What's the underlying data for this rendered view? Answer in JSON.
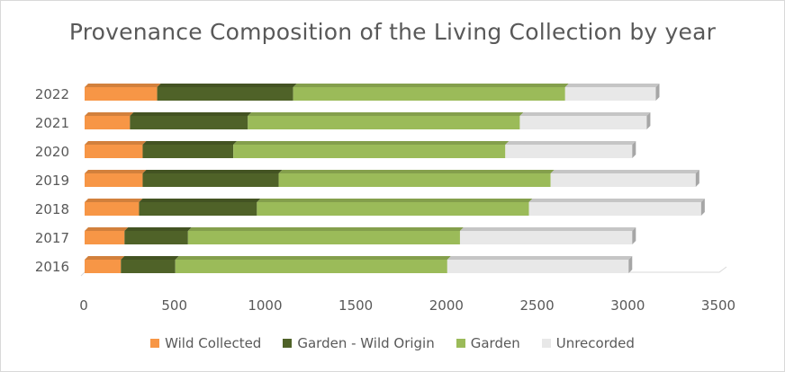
{
  "chart_data": {
    "type": "bar",
    "orientation": "horizontal",
    "stacked": true,
    "title": "Provenance Composition of the Living Collection by year",
    "categories": [
      "2016",
      "2017",
      "2018",
      "2019",
      "2020",
      "2021",
      "2022"
    ],
    "series": [
      {
        "name": "Wild Collected",
        "color": "#f79646",
        "values": [
          200,
          220,
          300,
          320,
          320,
          250,
          400
        ]
      },
      {
        "name": "Garden - Wild Origin",
        "color": "#4f6228",
        "values": [
          300,
          350,
          650,
          750,
          500,
          650,
          750
        ]
      },
      {
        "name": "Garden",
        "color": "#9bbb59",
        "values": [
          1500,
          1500,
          1500,
          1500,
          1500,
          1500,
          1500
        ]
      },
      {
        "name": "Unrecorded",
        "color": "#e8e8e8",
        "values": [
          1000,
          950,
          950,
          800,
          700,
          700,
          500
        ]
      }
    ],
    "xlim": [
      0,
      3500
    ],
    "xticks": [
      "0",
      "500",
      "1000",
      "1500",
      "2000",
      "2500",
      "3000",
      "3500"
    ],
    "grid": false,
    "legend_position": "bottom"
  }
}
